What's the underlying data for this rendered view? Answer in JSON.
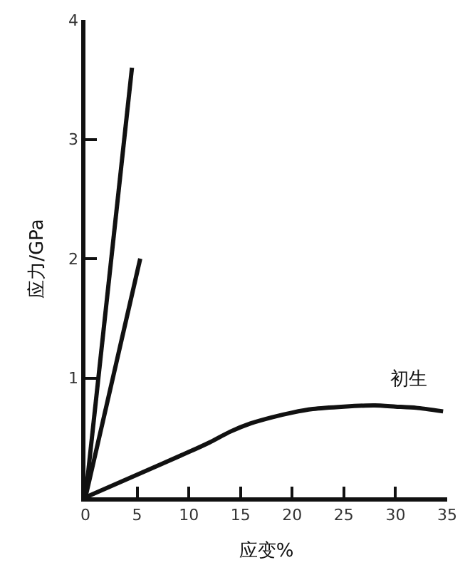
{
  "chart_data": {
    "type": "line",
    "xlabel": "应变%",
    "ylabel": "应力/GPa",
    "series": [
      {
        "color": "#111111",
        "x": [
          0,
          4.5
        ],
        "values": [
          0,
          3.6
        ]
      },
      {
        "color": "#111111",
        "x": [
          0,
          5.3
        ],
        "values": [
          0,
          2.0
        ]
      },
      {
        "name": "初生",
        "color": "#111111",
        "x": [
          0,
          5,
          10,
          12,
          14,
          16,
          18,
          20,
          22,
          25,
          28,
          30,
          32,
          34.6
        ],
        "values": [
          0,
          0.19,
          0.38,
          0.46,
          0.55,
          0.62,
          0.67,
          0.71,
          0.74,
          0.76,
          0.77,
          0.76,
          0.75,
          0.72
        ]
      }
    ],
    "xlim": [
      0,
      35
    ],
    "ylim": [
      0,
      4
    ],
    "xticks": [
      0,
      5,
      10,
      15,
      20,
      25,
      30,
      35
    ],
    "yticks": [
      {
        "value": 0,
        "label": null
      },
      1,
      2,
      3,
      4
    ],
    "legend": false,
    "marker": "none",
    "line_style": "solid"
  }
}
